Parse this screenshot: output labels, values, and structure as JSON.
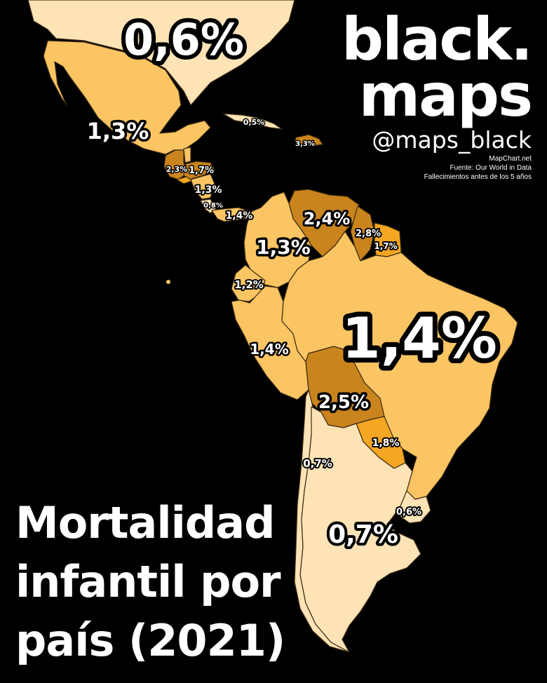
{
  "brand": {
    "line1": "black.",
    "line2": "maps",
    "handle": "@maps_black",
    "credit": "MapChart.net",
    "source": "Fuente: Our World in Data",
    "note": "Fallecimientos antes de los 5 años"
  },
  "title": {
    "line1": "Mortalidad",
    "line2": "infantil por",
    "line3": "país (2021)"
  },
  "legend_colors": {
    "very_low": "#fde3b6",
    "low": "#fcc563",
    "mid": "#f5a623",
    "high": "#c9841e",
    "background": "#000000"
  },
  "countries": [
    {
      "id": "usa",
      "value": "0,6%",
      "color": "very_low"
    },
    {
      "id": "mexico",
      "value": "1,3%",
      "color": "low"
    },
    {
      "id": "cuba",
      "value": "0,5%",
      "color": "very_low"
    },
    {
      "id": "haiti",
      "value": "3,3%",
      "color": "high"
    },
    {
      "id": "guatemala",
      "value": "2,3%",
      "color": "high"
    },
    {
      "id": "honduras",
      "value": "1,7%",
      "color": "high"
    },
    {
      "id": "nicaragua",
      "value": "1,3%",
      "color": "low"
    },
    {
      "id": "costa_rica",
      "value": "0,8%",
      "color": "very_low"
    },
    {
      "id": "panama",
      "value": "1,4%",
      "color": "low"
    },
    {
      "id": "venezuela",
      "value": "2,4%",
      "color": "high"
    },
    {
      "id": "guyana",
      "value": "2,8%",
      "color": "high"
    },
    {
      "id": "suriname",
      "value": "1,7%",
      "color": "mid"
    },
    {
      "id": "colombia",
      "value": "1,3%",
      "color": "low"
    },
    {
      "id": "ecuador",
      "value": "1,2%",
      "color": "low"
    },
    {
      "id": "peru",
      "value": "1,4%",
      "color": "low"
    },
    {
      "id": "brazil",
      "value": "1,4%",
      "color": "low"
    },
    {
      "id": "bolivia",
      "value": "2,5%",
      "color": "high"
    },
    {
      "id": "paraguay",
      "value": "1,8%",
      "color": "mid"
    },
    {
      "id": "chile",
      "value": "0,7%",
      "color": "very_low"
    },
    {
      "id": "argentina",
      "value": "0,7%",
      "color": "very_low"
    },
    {
      "id": "uruguay",
      "value": "0,6%",
      "color": "very_low"
    }
  ]
}
